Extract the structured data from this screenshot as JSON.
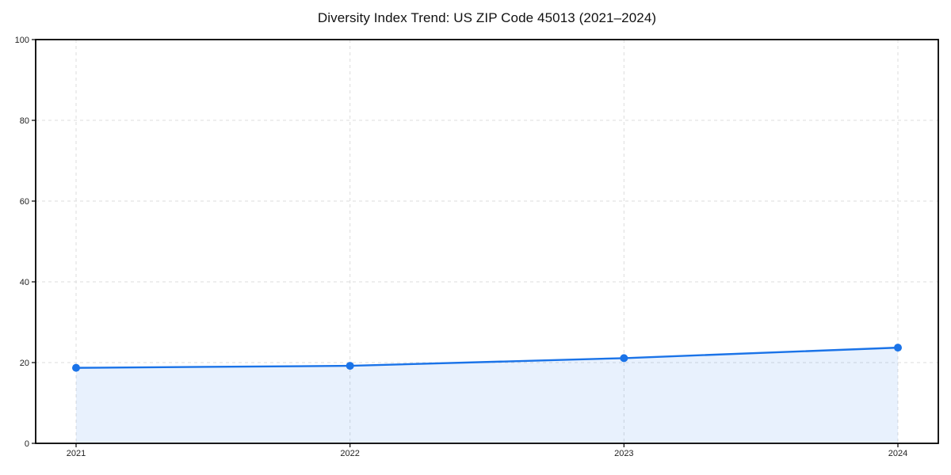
{
  "chart_data": {
    "type": "area",
    "title": "Diversity Index Trend: US ZIP Code 45013 (2021–2024)",
    "categories": [
      "2021",
      "2022",
      "2023",
      "2024"
    ],
    "series": [
      {
        "name": "Diversity Index",
        "values": [
          18.7,
          19.2,
          21.1,
          23.7
        ]
      }
    ],
    "xlabel": "",
    "ylabel": "",
    "ylim": [
      0,
      100
    ],
    "yticks": [
      0,
      20,
      40,
      60,
      80,
      100
    ],
    "grid": "dashed-both-axes",
    "legend_position": "none",
    "colors": {
      "line": "#1a73e8",
      "marker": "#1a73e8",
      "fill": "#1a73e8",
      "fill_opacity": 0.1,
      "grid": "#dcdcdc",
      "spine": "#000000",
      "tick_text": "#222222",
      "background": "#ffffff"
    }
  }
}
